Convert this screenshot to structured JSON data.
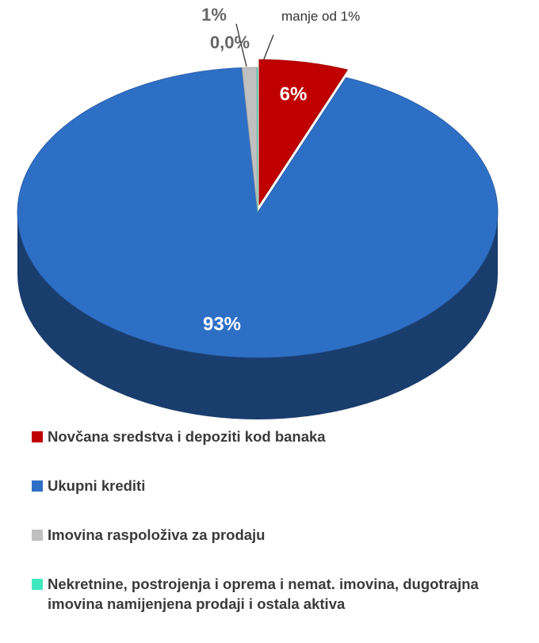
{
  "chart_data": {
    "type": "pie",
    "series": [
      {
        "name": "Novčana sredstva i depoziti kod banaka",
        "color": "#c00000"
      },
      {
        "name": "Ukupni krediti",
        "color": "#2e6fc6"
      },
      {
        "name": "Imovina raspoloživa za prodaju",
        "color": "#c0c0c0"
      },
      {
        "name": "Nekretnine, postrojenja i oprema i nemat. imovina, dugotrajna imovina namijenjena prodaji i ostala aktiva",
        "color": "#40e8c0"
      }
    ],
    "values": [
      6,
      93,
      1,
      0.04
    ],
    "value_labels": [
      "6%",
      "93%",
      "1%",
      "0,0%"
    ],
    "annotation": "manje od 1%"
  }
}
